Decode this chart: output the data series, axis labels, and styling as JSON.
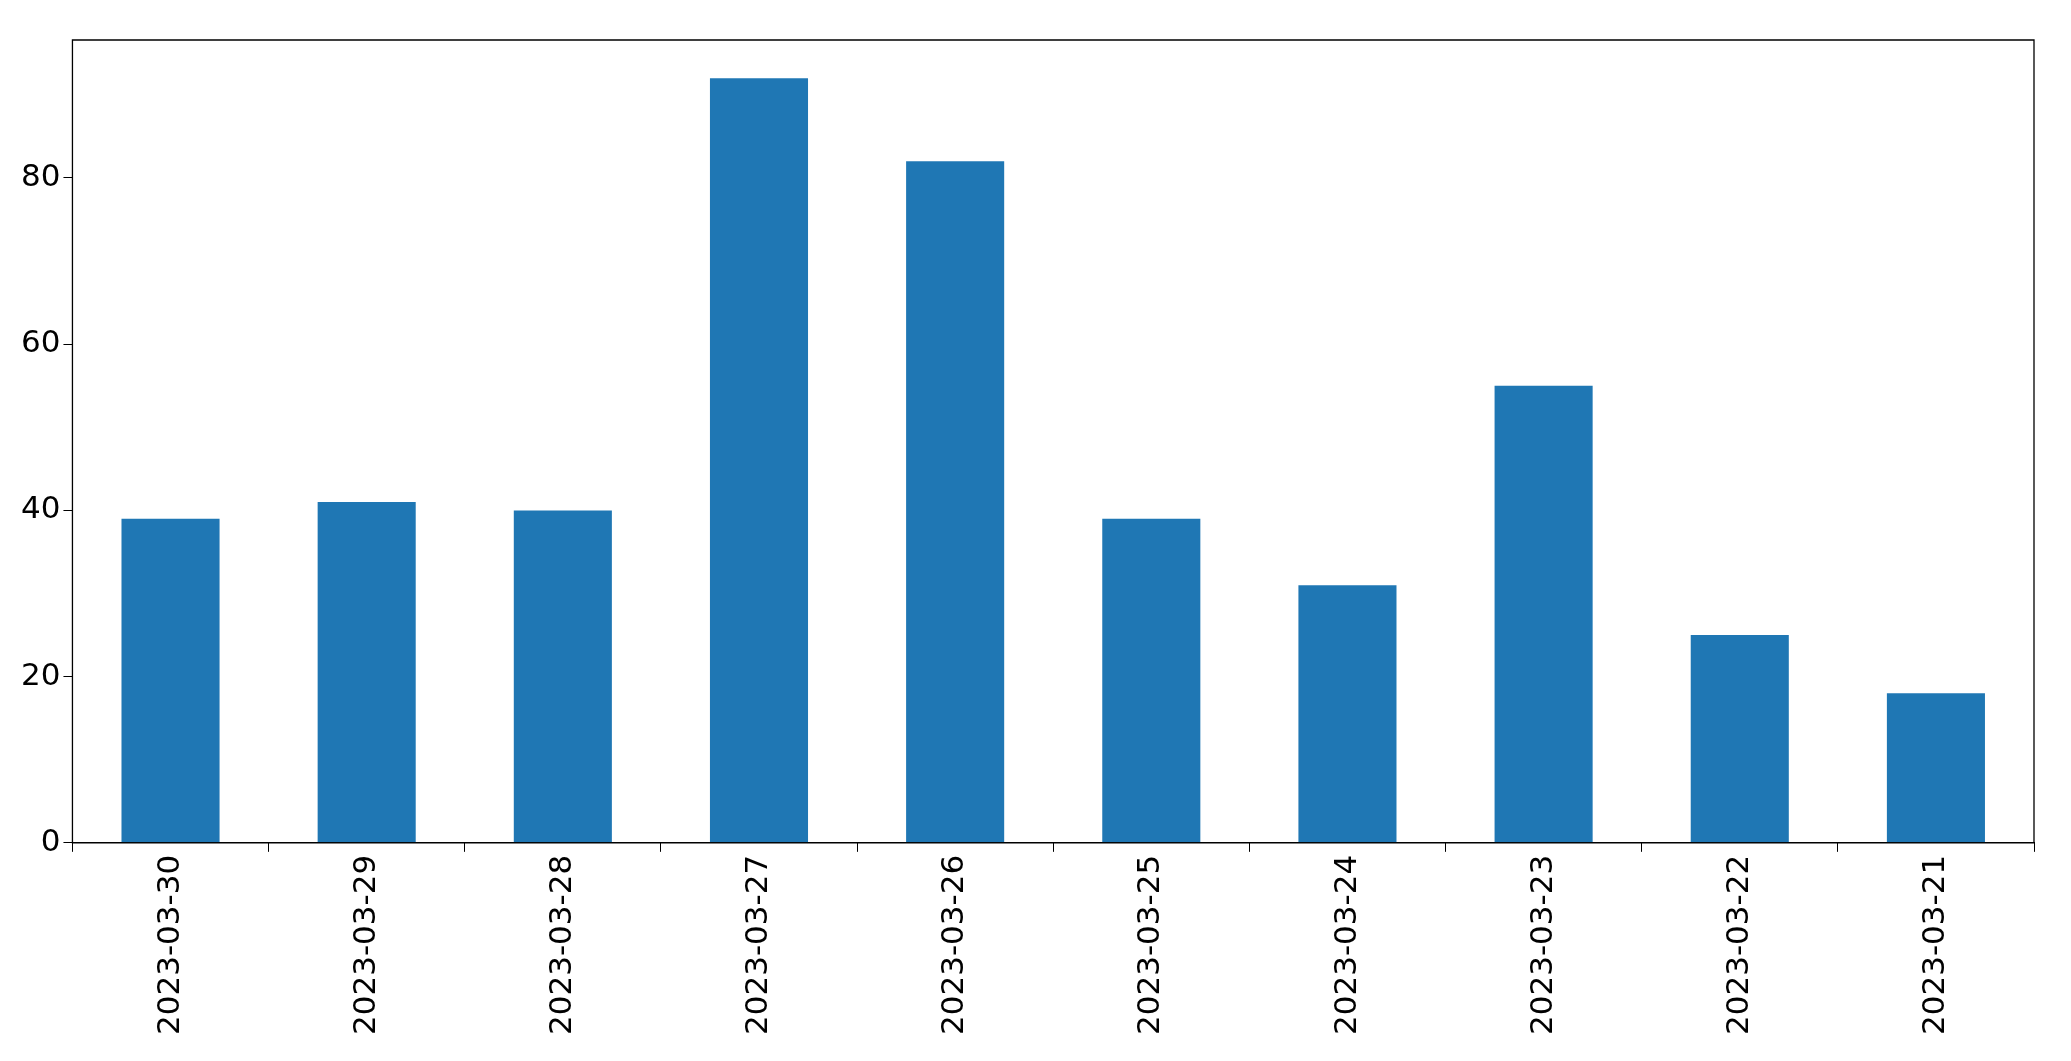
{
  "chart_data": {
    "type": "bar",
    "categories": [
      "2023-03-30",
      "2023-03-29",
      "2023-03-28",
      "2023-03-27",
      "2023-03-26",
      "2023-03-25",
      "2023-03-24",
      "2023-03-23",
      "2023-03-22",
      "2023-03-21"
    ],
    "values": [
      39,
      41,
      40,
      92,
      82,
      39,
      31,
      55,
      25,
      18
    ],
    "color": "#1f77b4",
    "ylim": [
      0,
      96.6
    ],
    "yticks": [
      0,
      20,
      40,
      60,
      80
    ],
    "grid": false,
    "legend": false
  }
}
